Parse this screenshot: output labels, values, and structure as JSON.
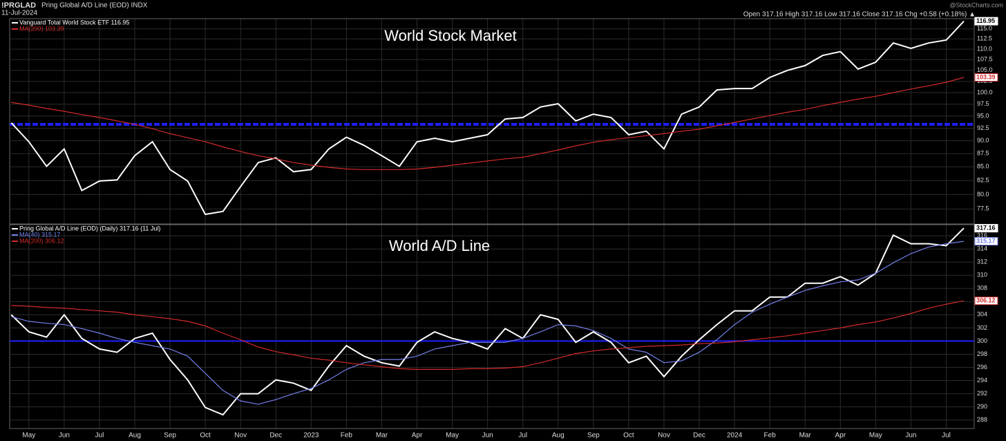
{
  "header": {
    "symbol": "!PRGLAD",
    "name": "Pring Global A/D Line (EOD) INDX",
    "date": "11-Jul-2024",
    "source": "@StockCharts.com",
    "info": "Open 317.16 High 317.16 Low 317.16 Close 317.16 Chg +0.58 (+0.18%) ▲"
  },
  "chart_data": [
    {
      "type": "line",
      "annotation": "World Stock Market",
      "log_scale": true,
      "grid": true,
      "ylim": [
        75.0,
        117.6
      ],
      "yticks": [
        77.5,
        {
          "value": 80,
          "label": "80.0"
        },
        82.5,
        {
          "value": 85,
          "label": "85.0"
        },
        87.5,
        {
          "value": 90,
          "label": "90.0"
        },
        92.5,
        {
          "value": 95,
          "label": "95.0"
        },
        97.5,
        {
          "value": 100,
          "label": "100.0"
        },
        102.5,
        {
          "value": 105,
          "label": "105.0"
        },
        107.5,
        {
          "value": 110,
          "label": "110.0"
        },
        112.5,
        {
          "value": 115,
          "label": "115.0"
        }
      ],
      "hline": {
        "value": 93.3,
        "color": "#2020ff",
        "dashed": true
      },
      "series": [
        {
          "name": "Vanguard Total World Stock ETF 116.95",
          "color": "#ffffff",
          "values": [
            93.6,
            89.8,
            85.1,
            88.4,
            80.7,
            82.4,
            82.6,
            87.1,
            89.8,
            84.5,
            82.4,
            76.6,
            77.1,
            81.4,
            85.8,
            86.7,
            84.1,
            84.5,
            88.4,
            90.7,
            89.1,
            87.1,
            85.1,
            89.8,
            90.5,
            89.8,
            90.5,
            91.2,
            94.4,
            94.7,
            96.9,
            97.6,
            94.0,
            95.4,
            94.7,
            91.2,
            91.9,
            88.4,
            95.4,
            96.9,
            100.6,
            100.9,
            100.9,
            103.4,
            105.0,
            106.1,
            108.5,
            109.4,
            105.3,
            106.9,
            111.5,
            110.2,
            111.5,
            112.2,
            116.95
          ]
        },
        {
          "name": "MA(200) 103.39",
          "color": "#d42a2a",
          "values": [
            97.9,
            97.3,
            96.6,
            96.0,
            95.3,
            94.7,
            94.0,
            93.3,
            92.4,
            91.4,
            90.6,
            89.8,
            88.8,
            87.9,
            87.1,
            86.5,
            85.8,
            85.3,
            84.9,
            84.6,
            84.5,
            84.5,
            84.5,
            84.6,
            84.9,
            85.3,
            85.7,
            86.1,
            86.5,
            86.8,
            87.5,
            88.2,
            89.0,
            89.7,
            90.2,
            90.6,
            91.0,
            91.4,
            91.9,
            92.3,
            93.0,
            93.7,
            94.4,
            95.1,
            95.8,
            96.4,
            97.2,
            97.9,
            98.6,
            99.2,
            100.0,
            100.8,
            101.5,
            102.3,
            103.39
          ]
        }
      ]
    },
    {
      "type": "line",
      "annotation": "World A/D Line",
      "log_scale": false,
      "grid": true,
      "ylim": [
        286.7,
        317.7
      ],
      "yticks": [
        288,
        290,
        292,
        294,
        296,
        298,
        300,
        302,
        304,
        306,
        308,
        310,
        312,
        314,
        316
      ],
      "hline": {
        "value": 300,
        "color": "#2020ff",
        "dashed": false
      },
      "categories": [
        null,
        "May",
        null,
        "Jun",
        null,
        "Jul",
        null,
        "Aug",
        null,
        "Sep",
        null,
        "Oct",
        null,
        "Nov",
        null,
        "Dec",
        null,
        "2023",
        null,
        "Feb",
        null,
        "Mar",
        null,
        "Apr",
        null,
        "May",
        null,
        "Jun",
        null,
        "Jul",
        null,
        "Aug",
        null,
        "Sep",
        null,
        "Oct",
        null,
        "Nov",
        null,
        "Dec",
        null,
        "2024",
        null,
        "Feb",
        null,
        "Mar",
        null,
        "Apr",
        null,
        "May",
        null,
        "Jun",
        null,
        "Jul",
        null
      ],
      "series": [
        {
          "name": "Pring Global A/D Line (EOD) (Daily) 317.16 (11 Jul)",
          "color": "#ffffff",
          "values": [
            304.0,
            301.4,
            300.6,
            304.0,
            300.4,
            298.8,
            298.3,
            300.4,
            301.2,
            297.2,
            294.1,
            289.9,
            288.8,
            292.0,
            292.0,
            294.1,
            293.6,
            292.5,
            296.2,
            299.3,
            297.7,
            296.7,
            296.2,
            299.8,
            301.4,
            300.4,
            299.8,
            298.8,
            301.9,
            300.4,
            304.0,
            303.3,
            299.8,
            301.4,
            299.8,
            296.7,
            297.7,
            294.6,
            297.7,
            300.2,
            302.5,
            304.6,
            304.6,
            306.7,
            306.7,
            308.8,
            308.8,
            309.8,
            308.5,
            310.3,
            316.1,
            314.8,
            314.8,
            314.5,
            317.16
          ]
        },
        {
          "name": "MA(40) 315.17",
          "color": "#7381ea",
          "values": [
            303.7,
            303.0,
            302.7,
            302.5,
            301.9,
            301.2,
            300.4,
            299.8,
            299.3,
            298.8,
            297.7,
            295.1,
            292.5,
            290.9,
            290.4,
            291.1,
            292.0,
            292.8,
            294.1,
            295.7,
            296.7,
            297.2,
            297.2,
            297.7,
            298.8,
            299.3,
            299.8,
            299.8,
            299.8,
            300.4,
            301.4,
            302.5,
            302.3,
            301.6,
            300.4,
            298.8,
            298.3,
            296.7,
            297.0,
            298.3,
            300.2,
            302.5,
            304.4,
            305.6,
            306.7,
            307.7,
            308.4,
            309.0,
            309.3,
            310.3,
            311.9,
            313.3,
            314.3,
            314.8,
            315.17
          ]
        },
        {
          "name": "MA(200) 306.12",
          "color": "#d42a2a",
          "values": [
            305.4,
            305.3,
            305.1,
            305.0,
            304.8,
            304.6,
            304.4,
            304.0,
            303.7,
            303.4,
            303.0,
            302.3,
            301.2,
            300.2,
            299.1,
            298.4,
            297.9,
            297.4,
            297.1,
            296.7,
            296.4,
            296.1,
            295.8,
            295.7,
            295.7,
            295.7,
            295.8,
            295.8,
            295.9,
            296.1,
            296.7,
            297.4,
            298.1,
            298.5,
            298.8,
            299.0,
            299.2,
            299.3,
            299.4,
            299.6,
            299.7,
            299.9,
            300.2,
            300.5,
            300.8,
            301.2,
            301.6,
            302.0,
            302.5,
            302.9,
            303.5,
            304.2,
            305.0,
            305.6,
            306.12
          ]
        }
      ]
    }
  ]
}
